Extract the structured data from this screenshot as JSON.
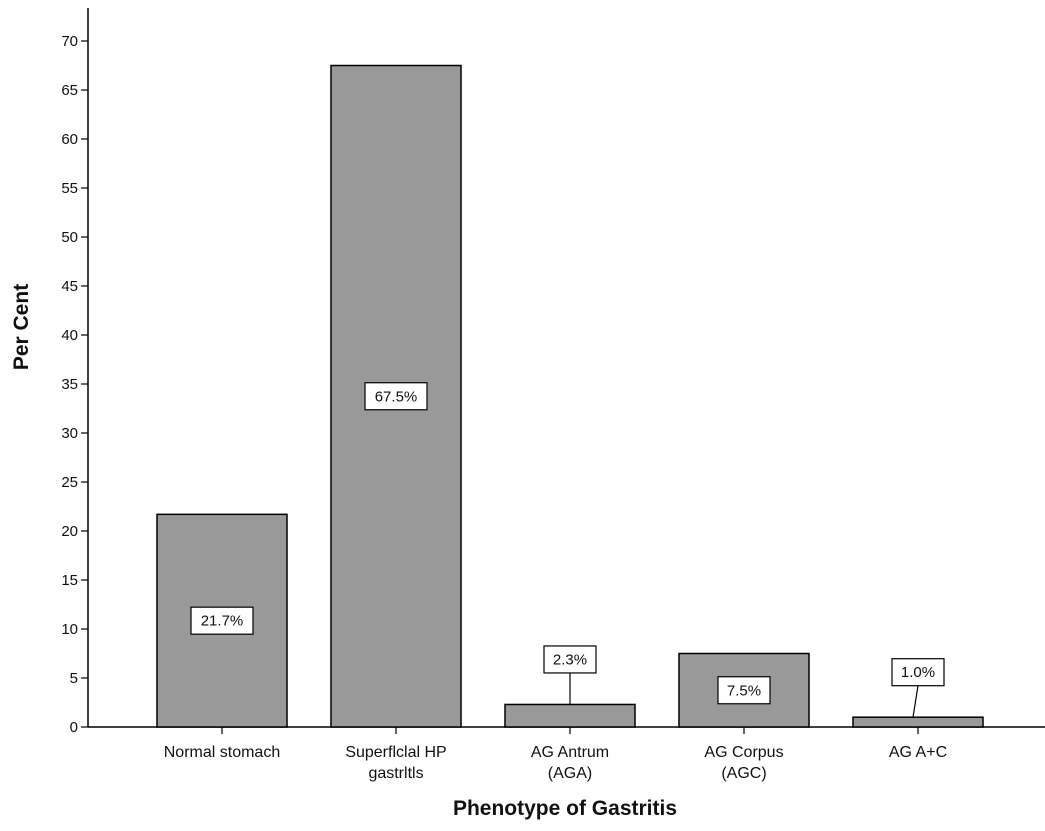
{
  "chart_data": {
    "type": "bar",
    "title": "",
    "xlabel": "Phenotype of Gastritis",
    "ylabel": "Per Cent",
    "ylim": [
      0,
      70
    ],
    "yticks": [
      0,
      5,
      10,
      15,
      20,
      25,
      30,
      35,
      40,
      45,
      50,
      55,
      60,
      65,
      70
    ],
    "grid": false,
    "legend": "none",
    "bar_color": "#999999",
    "categories": [
      [
        "Normal stomach"
      ],
      [
        "Superflclal HP",
        "gastrltls"
      ],
      [
        "AG Antrum",
        "(AGA)"
      ],
      [
        "AG Corpus",
        "(AGC)"
      ],
      [
        "AG A+C"
      ]
    ],
    "values": [
      21.7,
      67.5,
      2.3,
      7.5,
      1.0
    ],
    "data_labels": [
      "21.7%",
      "67.5%",
      "2.3%",
      "7.5%",
      "1.0%"
    ]
  }
}
